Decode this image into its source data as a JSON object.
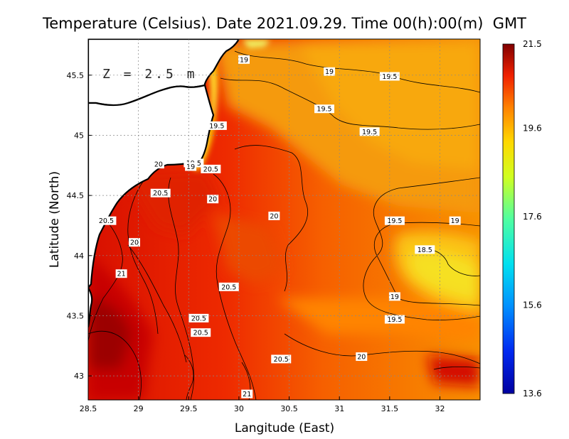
{
  "chart_data": {
    "type": "heatmap",
    "title": "Temperature (Celsius). Date 2021.09.29. Time 00(h):00(m)  GMT",
    "xlabel": "Langitude (East)",
    "ylabel": "Latitude (North)",
    "annotation": "Z = 2.5 m",
    "xlim": [
      28.5,
      32.4
    ],
    "ylim": [
      42.8,
      45.8
    ],
    "x_ticks": [
      "28.5",
      "29",
      "29.5",
      "30",
      "30.5",
      "31",
      "31.5",
      "32"
    ],
    "y_ticks": [
      "43",
      "43.5",
      "44",
      "44.5",
      "45",
      "45.5"
    ],
    "colorbar": {
      "min": 13.6,
      "max": 21.5,
      "ticks": [
        "21.5",
        "19.6",
        "17.6",
        "15.6",
        "13.6"
      ],
      "colors": [
        "#0000a0",
        "#0040ff",
        "#00c8ff",
        "#40ffb0",
        "#c8ff30",
        "#ffe000",
        "#ff9000",
        "#ff3000",
        "#c00000",
        "#800000"
      ]
    },
    "grid": true,
    "contour_labels": [
      {
        "text": "19",
        "x": 30.05,
        "y": 45.63
      },
      {
        "text": "19",
        "x": 30.9,
        "y": 45.53
      },
      {
        "text": "19.5",
        "x": 31.5,
        "y": 45.49
      },
      {
        "text": "19.5",
        "x": 30.85,
        "y": 45.22
      },
      {
        "text": "19.5",
        "x": 31.3,
        "y": 45.03
      },
      {
        "text": "19.5",
        "x": 29.78,
        "y": 45.08
      },
      {
        "text": "19.5",
        "x": 29.55,
        "y": 44.77
      },
      {
        "text": "20",
        "x": 29.2,
        "y": 44.76
      },
      {
        "text": "19",
        "x": 29.52,
        "y": 44.74
      },
      {
        "text": "20.5",
        "x": 29.72,
        "y": 44.72
      },
      {
        "text": "20.5",
        "x": 29.22,
        "y": 44.52
      },
      {
        "text": "20",
        "x": 29.74,
        "y": 44.47
      },
      {
        "text": "20",
        "x": 30.35,
        "y": 44.33
      },
      {
        "text": "20.5",
        "x": 28.68,
        "y": 44.29
      },
      {
        "text": "19.5",
        "x": 31.55,
        "y": 44.29
      },
      {
        "text": "19",
        "x": 32.15,
        "y": 44.29
      },
      {
        "text": "20",
        "x": 28.96,
        "y": 44.11
      },
      {
        "text": "18.5",
        "x": 31.85,
        "y": 44.05
      },
      {
        "text": "21",
        "x": 28.83,
        "y": 43.85
      },
      {
        "text": "20.5",
        "x": 29.9,
        "y": 43.74
      },
      {
        "text": "19",
        "x": 31.55,
        "y": 43.66
      },
      {
        "text": "20.5",
        "x": 29.6,
        "y": 43.48
      },
      {
        "text": "19.5",
        "x": 31.55,
        "y": 43.47
      },
      {
        "text": "20.5",
        "x": 29.62,
        "y": 43.36
      },
      {
        "text": "20.5",
        "x": 30.42,
        "y": 43.14
      },
      {
        "text": "20",
        "x": 31.22,
        "y": 43.16
      },
      {
        "text": "21",
        "x": 30.08,
        "y": 42.85
      }
    ]
  }
}
